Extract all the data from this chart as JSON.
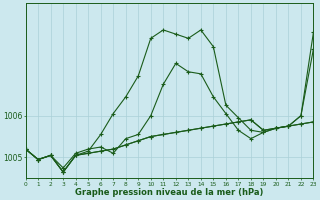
{
  "xlabel": "Graphe pression niveau de la mer (hPa)",
  "background_color": "#cce8ee",
  "grid_color": "#aad0d8",
  "line_color": "#1a5c1a",
  "hours": [
    0,
    1,
    2,
    3,
    4,
    5,
    6,
    7,
    8,
    9,
    10,
    11,
    12,
    13,
    14,
    15,
    16,
    17,
    18,
    19,
    20,
    21,
    22,
    23
  ],
  "series": [
    [
      1005.2,
      1004.95,
      1005.05,
      1004.65,
      1005.05,
      1005.1,
      1005.15,
      1005.2,
      1005.3,
      1005.4,
      1005.5,
      1005.55,
      1005.6,
      1005.65,
      1005.7,
      1005.75,
      1005.8,
      1005.85,
      1005.9,
      1005.65,
      1005.7,
      1005.75,
      1005.8,
      1005.85
    ],
    [
      1005.2,
      1004.95,
      1005.05,
      1004.65,
      1005.05,
      1005.1,
      1005.15,
      1005.2,
      1005.3,
      1005.4,
      1005.5,
      1005.55,
      1005.6,
      1005.65,
      1005.7,
      1005.75,
      1005.8,
      1005.85,
      1005.9,
      1005.65,
      1005.7,
      1005.75,
      1005.8,
      1005.85
    ],
    [
      1005.2,
      1004.95,
      1005.05,
      1004.75,
      1005.1,
      1005.2,
      1005.25,
      1005.1,
      1005.45,
      1005.55,
      1006.0,
      1006.75,
      1007.25,
      1007.05,
      1007.0,
      1006.45,
      1006.05,
      1005.65,
      1005.45,
      1005.6,
      1005.7,
      1005.75,
      1006.0,
      1007.6
    ],
    [
      1005.2,
      1004.95,
      1005.05,
      1004.65,
      1005.05,
      1005.15,
      1005.55,
      1006.05,
      1006.45,
      1006.95,
      1007.85,
      1008.05,
      1007.95,
      1007.85,
      1008.05,
      1007.65,
      1006.25,
      1005.95,
      1005.65,
      1005.6,
      1005.7,
      1005.75,
      1006.0,
      1008.0
    ]
  ],
  "ylim": [
    1004.5,
    1008.7
  ],
  "yticks": [
    1005,
    1006
  ],
  "xlim": [
    0,
    23
  ]
}
